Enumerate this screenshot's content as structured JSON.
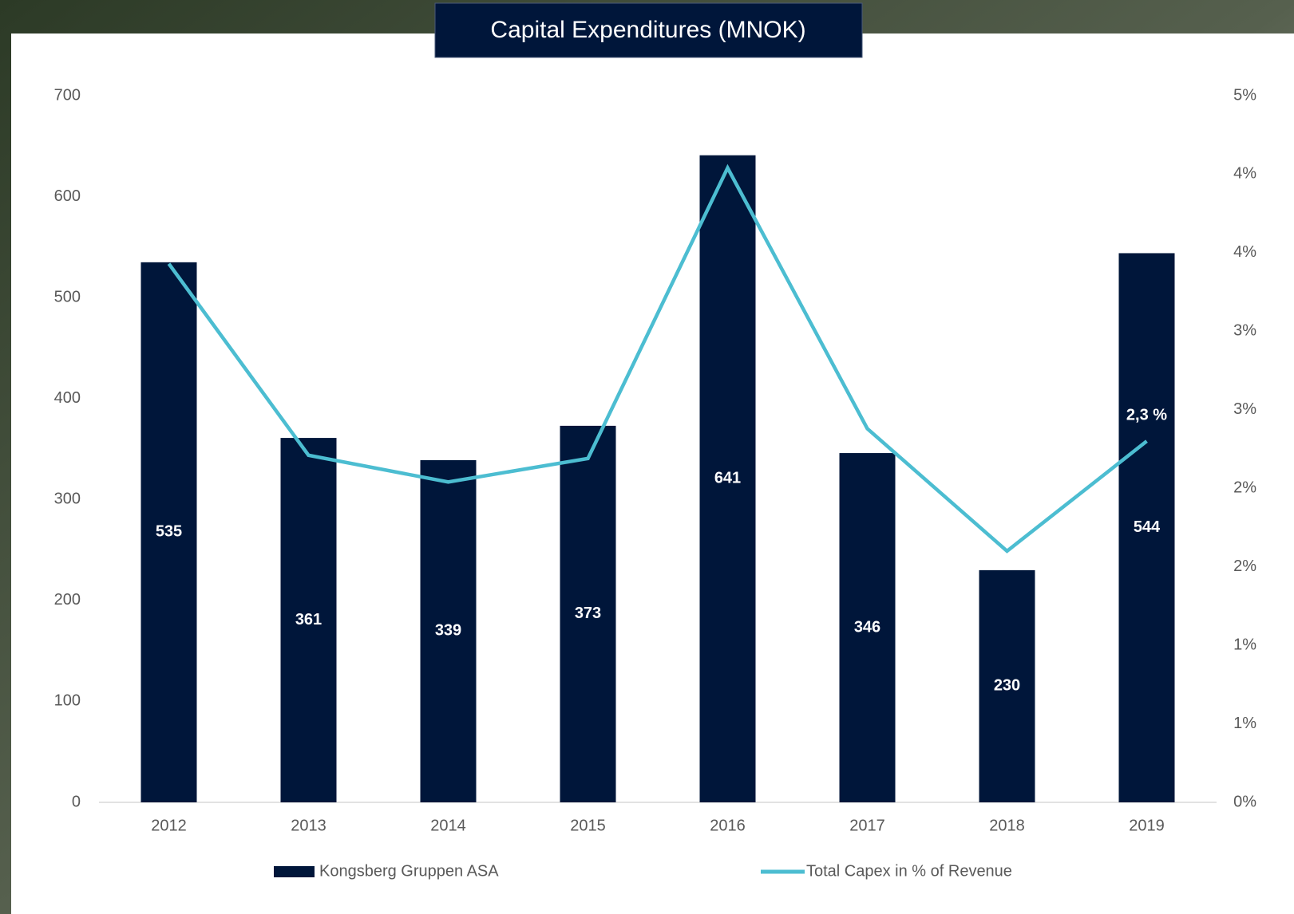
{
  "chart_data": {
    "type": "bar_line",
    "title": "Capital Expenditures (MNOK)",
    "categories": [
      "2012",
      "2013",
      "2014",
      "2015",
      "2016",
      "2017",
      "2018",
      "2019"
    ],
    "series": [
      {
        "name": "Kongsberg Gruppen ASA",
        "type": "bar",
        "color": "#00163a",
        "values": [
          535,
          361,
          339,
          373,
          641,
          346,
          230,
          544
        ]
      },
      {
        "name": "Total Capex in % of Revenue",
        "type": "line",
        "axis": "y2",
        "color": "#4cbdd1",
        "values": [
          3.43,
          2.21,
          2.04,
          2.19,
          4.04,
          2.38,
          1.6,
          2.3
        ],
        "value_labels": [
          null,
          null,
          null,
          null,
          null,
          null,
          null,
          "2,3 %"
        ]
      }
    ],
    "ylim": [
      0,
      700
    ],
    "yticks": [
      0,
      100,
      200,
      300,
      400,
      500,
      600,
      700
    ],
    "y2lim": [
      0,
      4.5
    ],
    "y2ticks": [
      {
        "value": 0,
        "label": "0%"
      },
      {
        "value": 0.5,
        "label": "1%"
      },
      {
        "value": 1,
        "label": "1%"
      },
      {
        "value": 1.5,
        "label": "2%"
      },
      {
        "value": 2,
        "label": "2%"
      },
      {
        "value": 2.5,
        "label": "3%"
      },
      {
        "value": 3,
        "label": "3%"
      },
      {
        "value": 3.5,
        "label": "4%"
      },
      {
        "value": 4,
        "label": "4%"
      },
      {
        "value": 4.5,
        "label": "5%"
      }
    ],
    "grid": false,
    "legend": "bottom"
  }
}
